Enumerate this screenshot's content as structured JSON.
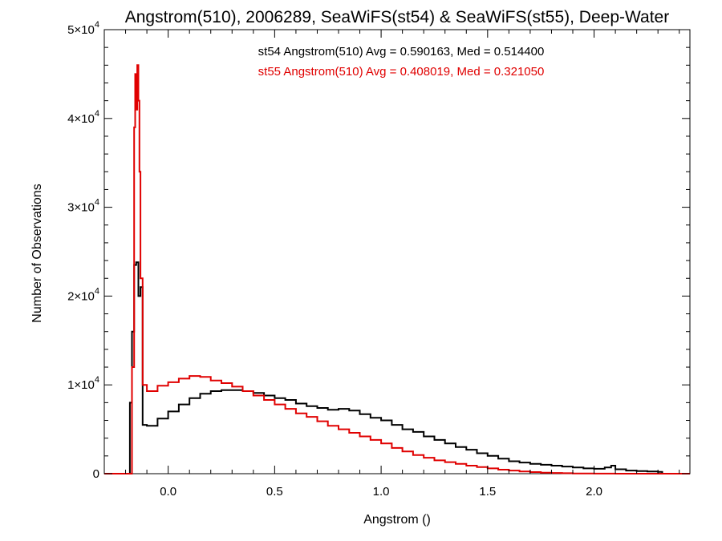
{
  "chart_data": {
    "type": "line",
    "title": "Angstrom(510), 2006289, SeaWiFS(st54) & SeaWiFS(st55), Deep-Water",
    "xlabel": "Angstrom ()",
    "ylabel": "Number of Observations",
    "xlim": [
      -0.3,
      2.45
    ],
    "ylim": [
      0,
      50000
    ],
    "x_ticks": [
      0.0,
      0.5,
      1.0,
      1.5,
      2.0
    ],
    "x_tick_labels": [
      "0.0",
      "0.5",
      "1.0",
      "1.5",
      "2.0"
    ],
    "y_ticks": [
      0,
      10000,
      20000,
      30000,
      40000,
      50000
    ],
    "y_tick_labels": [
      {
        "mantissa": "0",
        "exponent": ""
      },
      {
        "mantissa": "1×10",
        "exponent": "4"
      },
      {
        "mantissa": "2×10",
        "exponent": "4"
      },
      {
        "mantissa": "3×10",
        "exponent": "4"
      },
      {
        "mantissa": "4×10",
        "exponent": "4"
      },
      {
        "mantissa": "5×10",
        "exponent": "4"
      }
    ],
    "grid": false,
    "annotations": [
      {
        "text": "st54 Angstrom(510) Avg = 0.590163, Med = 0.514400",
        "color": "#000000"
      },
      {
        "text": "st55 Angstrom(510) Avg = 0.408019, Med = 0.321050",
        "color": "#e00000"
      }
    ],
    "series": [
      {
        "color": "#000000",
        "x": [
          -0.3,
          -0.18,
          -0.17,
          -0.16,
          -0.15,
          -0.14,
          -0.13,
          -0.12,
          -0.1,
          -0.05,
          0.0,
          0.05,
          0.1,
          0.15,
          0.2,
          0.25,
          0.3,
          0.35,
          0.4,
          0.45,
          0.5,
          0.55,
          0.6,
          0.65,
          0.7,
          0.75,
          0.8,
          0.85,
          0.9,
          0.95,
          1.0,
          1.05,
          1.1,
          1.15,
          1.2,
          1.25,
          1.3,
          1.35,
          1.4,
          1.45,
          1.5,
          1.55,
          1.6,
          1.65,
          1.7,
          1.75,
          1.8,
          1.85,
          1.9,
          1.95,
          2.0,
          2.05,
          2.08,
          2.1,
          2.15,
          2.2,
          2.25,
          2.3,
          2.32,
          2.45
        ],
        "y": [
          0,
          8000,
          16000,
          23500,
          23800,
          20000,
          21000,
          5500,
          5400,
          6200,
          7000,
          7800,
          8500,
          9000,
          9300,
          9400,
          9400,
          9300,
          9100,
          8800,
          8500,
          8300,
          7900,
          7600,
          7400,
          7200,
          7300,
          7100,
          6700,
          6300,
          6000,
          5500,
          5000,
          4700,
          4200,
          3800,
          3400,
          3000,
          2700,
          2300,
          2000,
          1700,
          1400,
          1250,
          1100,
          1000,
          900,
          800,
          700,
          600,
          550,
          700,
          900,
          500,
          350,
          300,
          250,
          200,
          0,
          0
        ]
      },
      {
        "color": "#e00000",
        "x": [
          -0.3,
          -0.17,
          -0.16,
          -0.155,
          -0.15,
          -0.145,
          -0.14,
          -0.135,
          -0.13,
          -0.12,
          -0.1,
          -0.05,
          0.0,
          0.05,
          0.1,
          0.15,
          0.2,
          0.25,
          0.3,
          0.35,
          0.4,
          0.45,
          0.5,
          0.55,
          0.6,
          0.65,
          0.7,
          0.75,
          0.8,
          0.85,
          0.9,
          0.95,
          1.0,
          1.05,
          1.1,
          1.15,
          1.2,
          1.25,
          1.3,
          1.35,
          1.4,
          1.45,
          1.5,
          1.55,
          1.6,
          1.65,
          1.7,
          1.75,
          1.8,
          1.85,
          1.9,
          1.95,
          2.0,
          2.05,
          2.1,
          2.45
        ],
        "y": [
          0,
          12000,
          39000,
          45000,
          41000,
          46000,
          42000,
          34000,
          22000,
          10000,
          9300,
          9900,
          10300,
          10700,
          11000,
          10900,
          10500,
          10200,
          9800,
          9300,
          8800,
          8300,
          7800,
          7300,
          6800,
          6400,
          5900,
          5400,
          5000,
          4600,
          4200,
          3800,
          3400,
          2900,
          2500,
          2100,
          1800,
          1500,
          1300,
          1100,
          900,
          750,
          600,
          450,
          350,
          250,
          180,
          120,
          80,
          50,
          30,
          20,
          10,
          5,
          0,
          0
        ]
      }
    ]
  }
}
